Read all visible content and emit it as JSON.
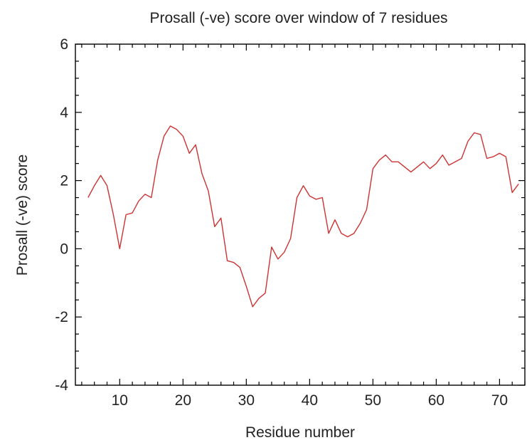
{
  "chart_data": {
    "type": "line",
    "title": "Prosall (-ve) score over window of 7 residues",
    "xlabel": "Residue number",
    "ylabel": "Prosall (-ve) score",
    "xlim": [
      3,
      74
    ],
    "ylim": [
      -4,
      6
    ],
    "xticks": [
      10,
      20,
      30,
      40,
      50,
      60,
      70
    ],
    "yticks": [
      -4,
      -2,
      0,
      2,
      4,
      6
    ],
    "grid": false,
    "series_color": "#cc3333",
    "x": [
      5,
      6,
      7,
      8,
      9,
      10,
      11,
      12,
      13,
      14,
      15,
      16,
      17,
      18,
      19,
      20,
      21,
      22,
      23,
      24,
      25,
      26,
      27,
      28,
      29,
      30,
      31,
      32,
      33,
      34,
      35,
      36,
      37,
      38,
      39,
      40,
      41,
      42,
      43,
      44,
      45,
      46,
      47,
      48,
      49,
      50,
      51,
      52,
      53,
      54,
      55,
      56,
      57,
      58,
      59,
      60,
      61,
      62,
      63,
      64,
      65,
      66,
      67,
      68,
      69,
      70,
      71,
      72,
      73
    ],
    "y": [
      1.5,
      1.85,
      2.15,
      1.85,
      1.0,
      0.0,
      1.0,
      1.05,
      1.4,
      1.6,
      1.5,
      2.6,
      3.3,
      3.6,
      3.5,
      3.3,
      2.8,
      3.05,
      2.2,
      1.7,
      0.65,
      0.9,
      -0.35,
      -0.4,
      -0.55,
      -1.1,
      -1.7,
      -1.45,
      -1.3,
      0.05,
      -0.3,
      -0.1,
      0.3,
      1.5,
      1.85,
      1.55,
      1.45,
      1.5,
      0.45,
      0.85,
      0.45,
      0.35,
      0.45,
      0.75,
      1.15,
      2.35,
      2.6,
      2.75,
      2.55,
      2.55,
      2.4,
      2.25,
      2.4,
      2.55,
      2.35,
      2.5,
      2.75,
      2.45,
      2.55,
      2.65,
      3.15,
      3.4,
      3.35,
      2.65,
      2.7,
      2.8,
      2.7,
      1.65,
      1.9
    ]
  }
}
